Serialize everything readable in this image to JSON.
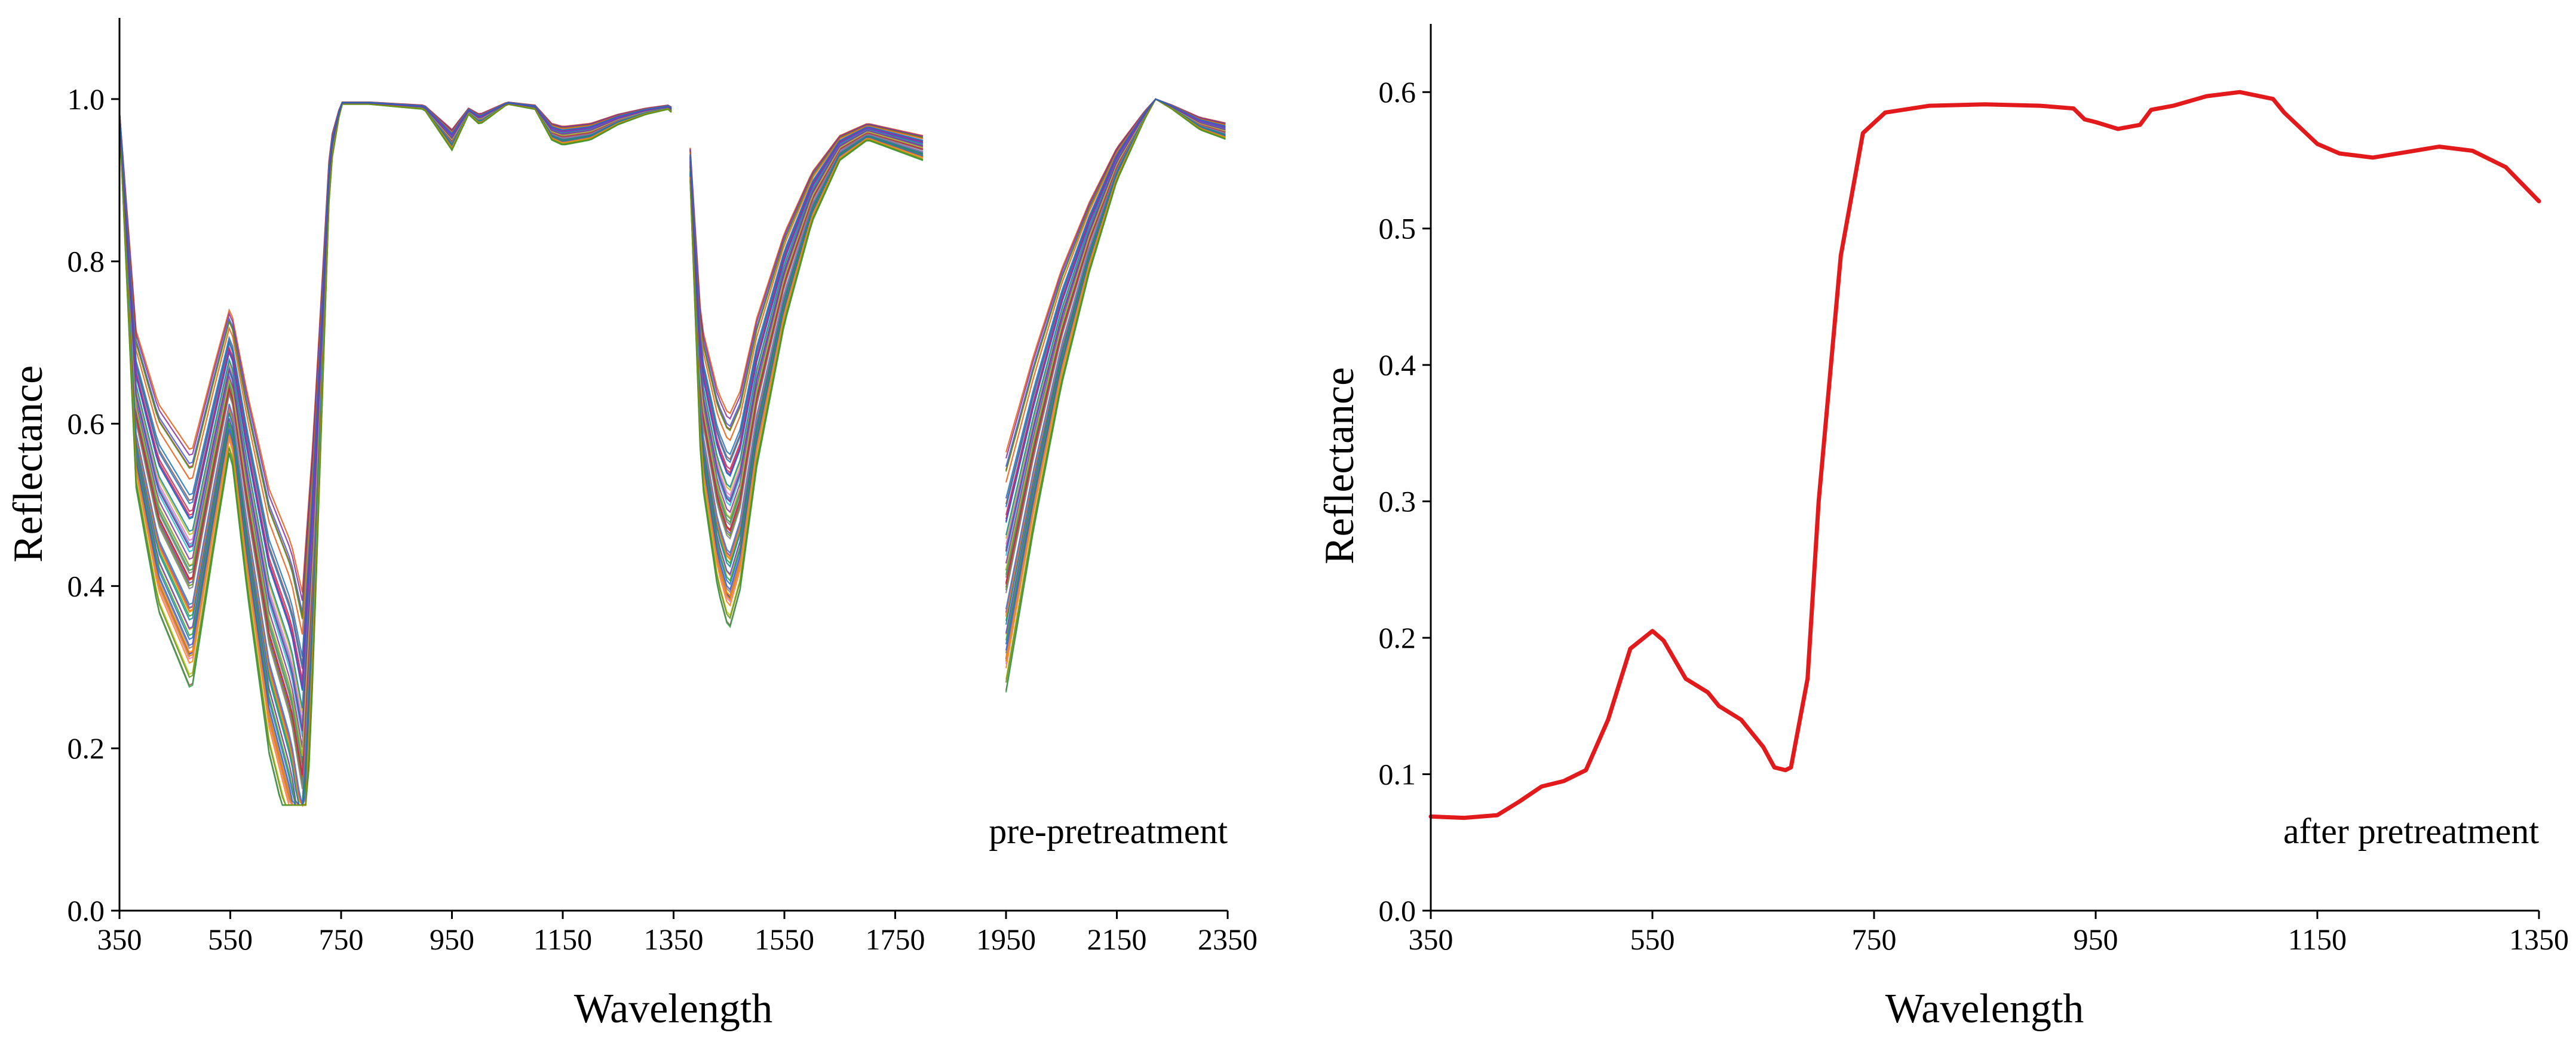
{
  "chart_data": [
    {
      "type": "line",
      "id": "left",
      "title": "",
      "xlabel": "Wavelength",
      "ylabel": "Reflectance",
      "annotation": "pre-pretreatment",
      "xlim": [
        350,
        2350
      ],
      "ylim": [
        0,
        1.1
      ],
      "xticks": [
        350,
        550,
        750,
        950,
        1150,
        1350,
        1550,
        1750,
        1950,
        2150,
        2350
      ],
      "xtick_labels": [
        "350",
        "550",
        "750",
        "950",
        "1150",
        "1350",
        "1550",
        "1750",
        "1950",
        "2150",
        "2350"
      ],
      "yticks": [
        0,
        0.2,
        0.4,
        0.6,
        0.8,
        1.0
      ],
      "ytick_labels": [
        "0.0",
        "0.2",
        "0.4",
        "0.6",
        "0.8",
        "1.0"
      ],
      "series_count": 60,
      "series_colors": [
        "#1f77b4",
        "#ff7f0e",
        "#2ca02c",
        "#d62728",
        "#9467bd",
        "#8c564b",
        "#e377c2",
        "#7f7f7f",
        "#bcbd22",
        "#17becf",
        "#3b5bdb",
        "#e8590c",
        "#2f9e44",
        "#c2255c",
        "#6741d9",
        "#0c8599",
        "#f08c00",
        "#5c940d",
        "#862e9c",
        "#1971c2"
      ],
      "segments": [
        {
          "x": [
            350,
            380,
            420,
            480,
            520,
            550,
            580,
            620,
            660,
            680,
            700,
            730,
            750,
            800,
            900,
            950,
            980,
            1000,
            1050,
            1100,
            1130,
            1150,
            1200,
            1250,
            1300,
            1340,
            1350
          ],
          "y": [
            0.98,
            0.62,
            0.5,
            0.42,
            0.56,
            0.66,
            0.52,
            0.36,
            0.27,
            0.19,
            0.45,
            0.93,
            0.995,
            0.995,
            0.99,
            0.95,
            0.985,
            0.975,
            0.995,
            0.99,
            0.96,
            0.955,
            0.96,
            0.975,
            0.985,
            0.99,
            0.985
          ]
        },
        {
          "x": [
            1380,
            1400,
            1430,
            1450,
            1470,
            1500,
            1550,
            1600,
            1650,
            1700,
            1750,
            1800
          ],
          "y": [
            0.92,
            0.63,
            0.52,
            0.48,
            0.52,
            0.64,
            0.78,
            0.88,
            0.94,
            0.96,
            0.95,
            0.94
          ]
        },
        {
          "x": [
            1950,
            2000,
            2050,
            2100,
            2150,
            2200,
            2220,
            2250,
            2300,
            2350
          ],
          "y": [
            0.42,
            0.58,
            0.72,
            0.83,
            0.92,
            0.98,
            1.0,
            0.99,
            0.97,
            0.96
          ]
        }
      ]
    },
    {
      "type": "line",
      "id": "right",
      "title": "",
      "xlabel": "Wavelength",
      "ylabel": "Reflectance",
      "annotation": "after pretreatment",
      "xlim": [
        350,
        1350
      ],
      "ylim": [
        0,
        0.65
      ],
      "xticks": [
        350,
        550,
        750,
        950,
        1150,
        1350
      ],
      "xtick_labels": [
        "350",
        "550",
        "750",
        "950",
        "1150",
        "1350"
      ],
      "yticks": [
        0,
        0.1,
        0.2,
        0.3,
        0.4,
        0.5,
        0.6
      ],
      "ytick_labels": [
        "0.0",
        "0.1",
        "0.2",
        "0.3",
        "0.4",
        "0.5",
        "0.6"
      ],
      "series": [
        {
          "name": "after pretreatment",
          "color": "#e31a1c",
          "x": [
            350,
            380,
            410,
            430,
            450,
            470,
            490,
            510,
            530,
            550,
            560,
            580,
            600,
            610,
            630,
            650,
            660,
            670,
            675,
            690,
            700,
            720,
            740,
            760,
            800,
            850,
            900,
            930,
            940,
            950,
            970,
            990,
            1000,
            1020,
            1050,
            1080,
            1110,
            1120,
            1150,
            1170,
            1200,
            1230,
            1260,
            1290,
            1320,
            1350
          ],
          "y": [
            0.069,
            0.068,
            0.07,
            0.08,
            0.091,
            0.095,
            0.103,
            0.14,
            0.192,
            0.205,
            0.198,
            0.17,
            0.16,
            0.15,
            0.14,
            0.12,
            0.105,
            0.103,
            0.105,
            0.17,
            0.3,
            0.48,
            0.57,
            0.585,
            0.59,
            0.591,
            0.59,
            0.588,
            0.58,
            0.578,
            0.573,
            0.576,
            0.587,
            0.59,
            0.597,
            0.6,
            0.595,
            0.585,
            0.562,
            0.555,
            0.552,
            0.556,
            0.56,
            0.557,
            0.545,
            0.52
          ]
        }
      ]
    }
  ]
}
